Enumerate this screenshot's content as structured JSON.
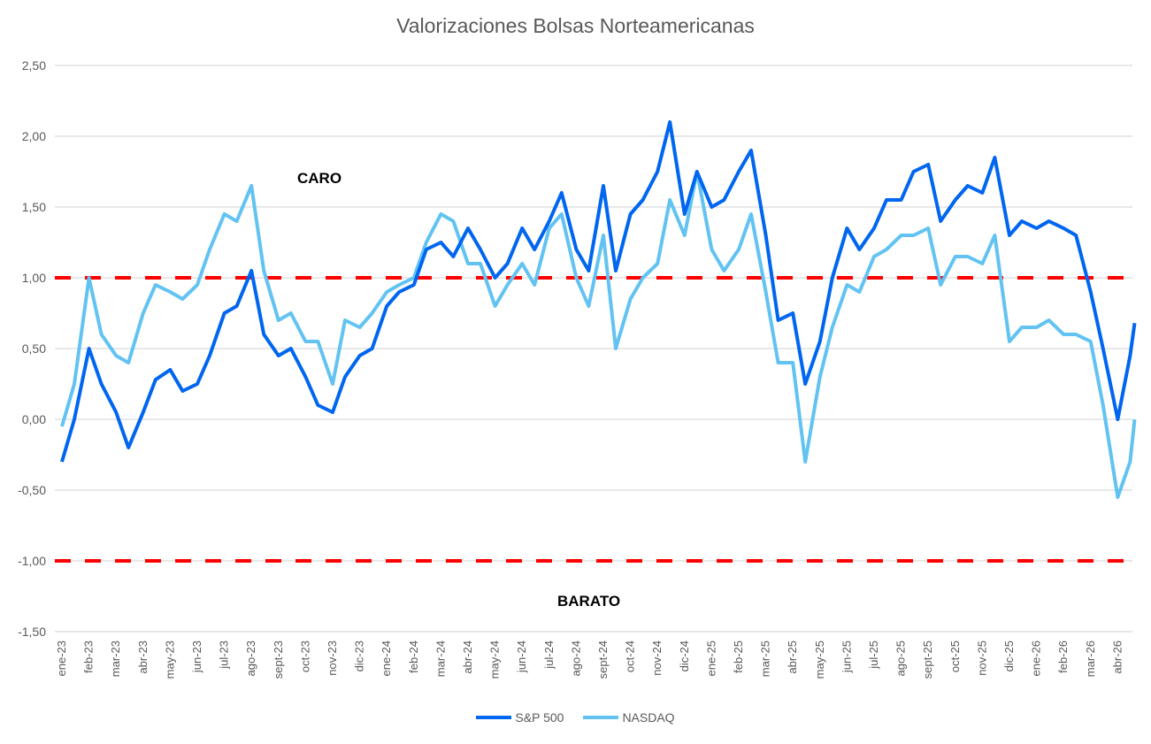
{
  "chart_data": {
    "type": "line",
    "title": "Valorizaciones Bolsas Norteamericanas",
    "xlabel": "",
    "ylabel": "",
    "ylim": [
      -1.5,
      2.5
    ],
    "yticks": [
      "2,50",
      "2,00",
      "1,50",
      "1,00",
      "0,50",
      "0,00",
      "-0,50",
      "-1,00",
      "-1,50"
    ],
    "ytick_values": [
      2.5,
      2.0,
      1.5,
      1.0,
      0.5,
      0.0,
      -0.5,
      -1.0,
      -1.5
    ],
    "xticks": [
      "ene-23",
      "feb-23",
      "mar-23",
      "abr-23",
      "may-23",
      "jun-23",
      "jul-23",
      "ago-23",
      "sept-23",
      "oct-23",
      "nov-23",
      "dic-23",
      "ene-24",
      "feb-24",
      "mar-24",
      "abr-24",
      "may-24",
      "jun-24",
      "jul-24",
      "ago-24",
      "sept-24",
      "oct-24",
      "nov-24",
      "dic-24",
      "ene-25",
      "feb-25",
      "mar-25",
      "abr-25",
      "may-25",
      "jun-25",
      "jul-25",
      "ago-25",
      "sept-25",
      "oct-25",
      "nov-25",
      "dic-25",
      "ene-26",
      "feb-26",
      "mar-26",
      "abr-26"
    ],
    "grid": true,
    "legend": "bottom",
    "reference_lines": [
      1.0,
      -1.0
    ],
    "reference_line_color": "#FF0000",
    "annotations": [
      "CARO",
      "BARATO"
    ],
    "x": [
      "2023-01-01",
      "2023-01-15",
      "2023-02-01",
      "2023-02-15",
      "2023-03-01",
      "2023-03-15",
      "2023-04-01",
      "2023-04-15",
      "2023-05-01",
      "2023-05-15",
      "2023-06-01",
      "2023-06-15",
      "2023-07-01",
      "2023-07-15",
      "2023-08-01",
      "2023-08-15",
      "2023-09-01",
      "2023-09-15",
      "2023-10-01",
      "2023-10-15",
      "2023-11-01",
      "2023-11-15",
      "2023-12-01",
      "2023-12-15",
      "2024-01-01",
      "2024-01-15",
      "2024-02-01",
      "2024-02-15",
      "2024-03-01",
      "2024-03-15",
      "2024-04-01",
      "2024-04-15",
      "2024-05-01",
      "2024-05-15",
      "2024-06-01",
      "2024-06-15",
      "2024-07-01",
      "2024-07-15",
      "2024-08-01",
      "2024-08-15",
      "2024-09-01",
      "2024-09-15",
      "2024-10-01",
      "2024-10-15",
      "2024-11-01",
      "2024-11-15",
      "2024-12-01",
      "2024-12-15",
      "2025-01-01",
      "2025-01-15",
      "2025-02-01",
      "2025-02-15",
      "2025-03-01",
      "2025-03-15",
      "2025-04-01",
      "2025-04-15",
      "2025-05-01",
      "2025-05-15",
      "2025-06-01",
      "2025-06-15",
      "2025-07-01",
      "2025-07-15",
      "2025-08-01",
      "2025-08-15",
      "2025-09-01",
      "2025-09-15",
      "2025-10-01",
      "2025-10-15",
      "2025-11-01",
      "2025-11-15",
      "2025-12-01",
      "2025-12-15",
      "2026-01-01",
      "2026-01-15",
      "2026-02-01",
      "2026-02-15",
      "2026-03-01",
      "2026-03-15",
      "2026-04-01",
      "2026-04-15",
      "2026-04-20"
    ],
    "series": [
      {
        "name": "S&P 500",
        "color": "#0066F0",
        "values": [
          -0.3,
          0.0,
          0.5,
          0.25,
          0.05,
          -0.2,
          0.05,
          0.28,
          0.35,
          0.2,
          0.25,
          0.45,
          0.75,
          0.8,
          1.05,
          0.6,
          0.45,
          0.5,
          0.3,
          0.1,
          0.05,
          0.3,
          0.45,
          0.5,
          0.8,
          0.9,
          0.95,
          1.2,
          1.25,
          1.15,
          1.35,
          1.2,
          1.0,
          1.1,
          1.35,
          1.2,
          1.4,
          1.6,
          1.2,
          1.05,
          1.65,
          1.05,
          1.45,
          1.55,
          1.75,
          2.1,
          1.45,
          1.75,
          1.5,
          1.55,
          1.75,
          1.9,
          1.3,
          0.7,
          0.75,
          0.25,
          0.55,
          1.0,
          1.35,
          1.2,
          1.35,
          1.55,
          1.55,
          1.75,
          1.8,
          1.4,
          1.55,
          1.65,
          1.6,
          1.85,
          1.3,
          1.4,
          1.35,
          1.4,
          1.35,
          1.3,
          0.9,
          0.5,
          0.0,
          0.45,
          0.68
        ]
      },
      {
        "name": "NASDAQ",
        "color": "#62C3F2",
        "values": [
          -0.05,
          0.25,
          1.0,
          0.6,
          0.45,
          0.4,
          0.75,
          0.95,
          0.9,
          0.85,
          0.95,
          1.2,
          1.45,
          1.4,
          1.65,
          1.05,
          0.7,
          0.75,
          0.55,
          0.55,
          0.25,
          0.7,
          0.65,
          0.75,
          0.9,
          0.95,
          1.0,
          1.25,
          1.45,
          1.4,
          1.1,
          1.1,
          0.8,
          0.95,
          1.1,
          0.95,
          1.35,
          1.45,
          1.0,
          0.8,
          1.3,
          0.5,
          0.85,
          1.0,
          1.1,
          1.55,
          1.3,
          1.75,
          1.2,
          1.05,
          1.2,
          1.45,
          0.9,
          0.4,
          0.4,
          -0.3,
          0.3,
          0.65,
          0.95,
          0.9,
          1.15,
          1.2,
          1.3,
          1.3,
          1.35,
          0.95,
          1.15,
          1.15,
          1.1,
          1.3,
          0.55,
          0.65,
          0.65,
          0.7,
          0.6,
          0.6,
          0.55,
          0.1,
          -0.55,
          -0.3,
          0.0
        ]
      }
    ]
  }
}
